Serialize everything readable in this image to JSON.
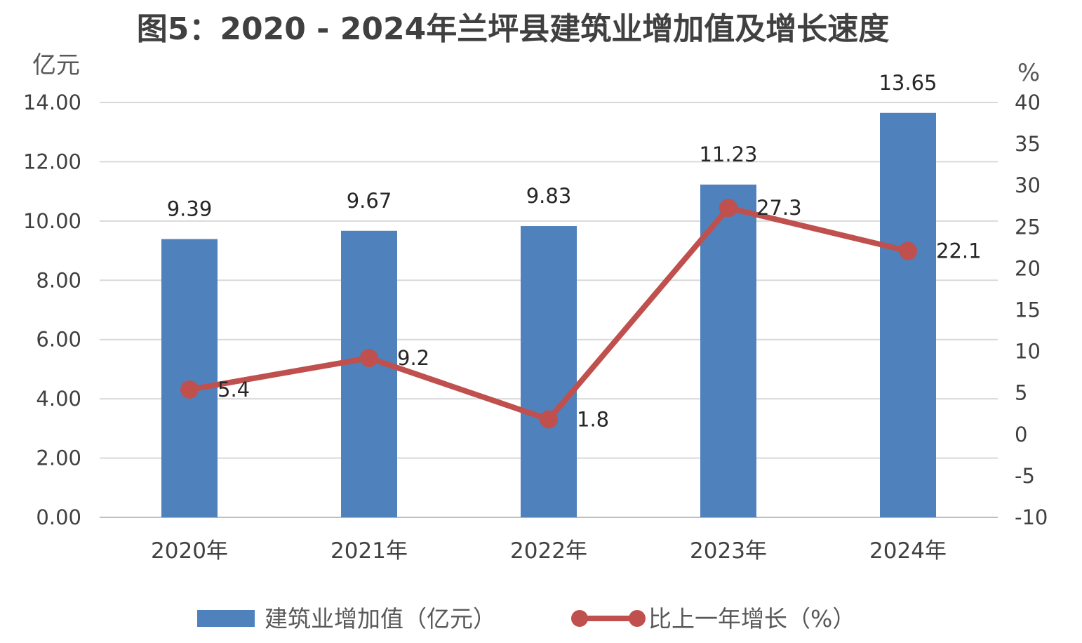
{
  "chart_data": {
    "type": "bar",
    "title": "图5：2020 - 2024年兰坪县建筑业增加值及增长速度",
    "categories": [
      "2020年",
      "2021年",
      "2022年",
      "2023年",
      "2024年"
    ],
    "left_axis": {
      "unit": "亿元",
      "ylim": [
        0,
        14
      ],
      "ticks": [
        "0.00",
        "2.00",
        "4.00",
        "6.00",
        "8.00",
        "10.00",
        "12.00",
        "14.00"
      ]
    },
    "right_axis": {
      "unit": "%",
      "ylim": [
        -10,
        40
      ],
      "ticks": [
        "-10",
        "-5",
        "0",
        "5",
        "10",
        "15",
        "20",
        "25",
        "30",
        "35",
        "40"
      ]
    },
    "series": [
      {
        "name": "建筑业增加值（亿元）",
        "type": "bar",
        "axis": "left",
        "color": "#4f81bd",
        "values": [
          9.39,
          9.67,
          9.83,
          11.23,
          13.65
        ],
        "labels": [
          "9.39",
          "9.67",
          "9.83",
          "11.23",
          "13.65"
        ]
      },
      {
        "name": "比上一年增长（%）",
        "type": "line",
        "axis": "right",
        "color": "#c0504d",
        "values": [
          5.4,
          9.2,
          1.8,
          27.3,
          22.1
        ],
        "labels": [
          "5.4",
          "9.2",
          "1.8",
          "27.3",
          "22.1"
        ]
      }
    ],
    "grid": true,
    "legend_position": "bottom"
  }
}
